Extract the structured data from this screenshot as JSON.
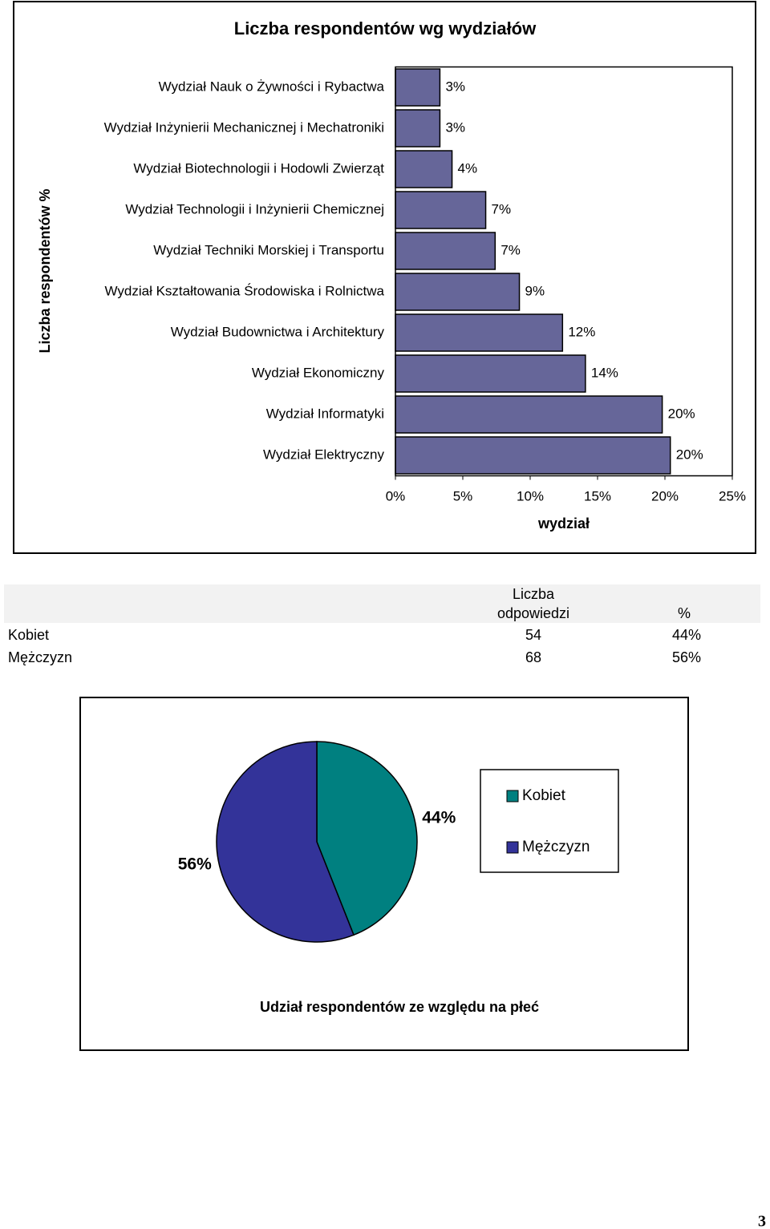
{
  "chart_data": [
    {
      "type": "bar",
      "orientation": "horizontal",
      "title": "Liczba respondentów wg wydziałów",
      "y_label": "Liczba respondentów %",
      "x_label": "wydział",
      "categories": [
        "Wydział Nauk o Żywności i Rybactwa",
        "Wydział Inżynierii Mechanicznej i Mechatroniki",
        "Wydział Biotechnologii i Hodowli Zwierząt",
        "Wydział Technologii i Inżynierii Chemicznej",
        "Wydział Techniki Morskiej i Transportu",
        "Wydział Kształtowania Środowiska i Rolnictwa",
        "Wydział Budownictwa i Architektury",
        "Wydział Ekonomiczny",
        "Wydział Informatyki",
        "Wydział Elektryczny"
      ],
      "values": [
        3.3,
        3.3,
        4.2,
        6.7,
        7.4,
        9.2,
        12.4,
        14.1,
        19.8,
        20.4
      ],
      "value_labels": [
        "3%",
        "3%",
        "4%",
        "7%",
        "7%",
        "9%",
        "12%",
        "14%",
        "20%",
        "20%"
      ],
      "color": "#666699",
      "xlim": [
        0,
        25
      ],
      "xticks": [
        {
          "value": 0,
          "label": "0%"
        },
        {
          "value": 5,
          "label": "5%"
        },
        {
          "value": 10,
          "label": "10%"
        },
        {
          "value": 15,
          "label": "15%"
        },
        {
          "value": 20,
          "label": "20%"
        },
        {
          "value": 25,
          "label": "25%"
        }
      ],
      "grid": false
    },
    {
      "type": "pie",
      "title": "Udział respondentów ze względu na płeć",
      "categories": [
        "Kobiet",
        "Mężczyzn"
      ],
      "values": [
        44,
        56
      ],
      "value_labels": [
        "44%",
        "56%"
      ],
      "colors": [
        "#008080",
        "#333399"
      ],
      "legend": "right"
    }
  ],
  "table": {
    "header": [
      "Liczba odpowiedzi",
      "%"
    ],
    "rows": [
      [
        "Kobiet",
        "54",
        "44%"
      ],
      [
        "Mężczyzn",
        "68",
        "56%"
      ]
    ]
  },
  "page_number": "3"
}
